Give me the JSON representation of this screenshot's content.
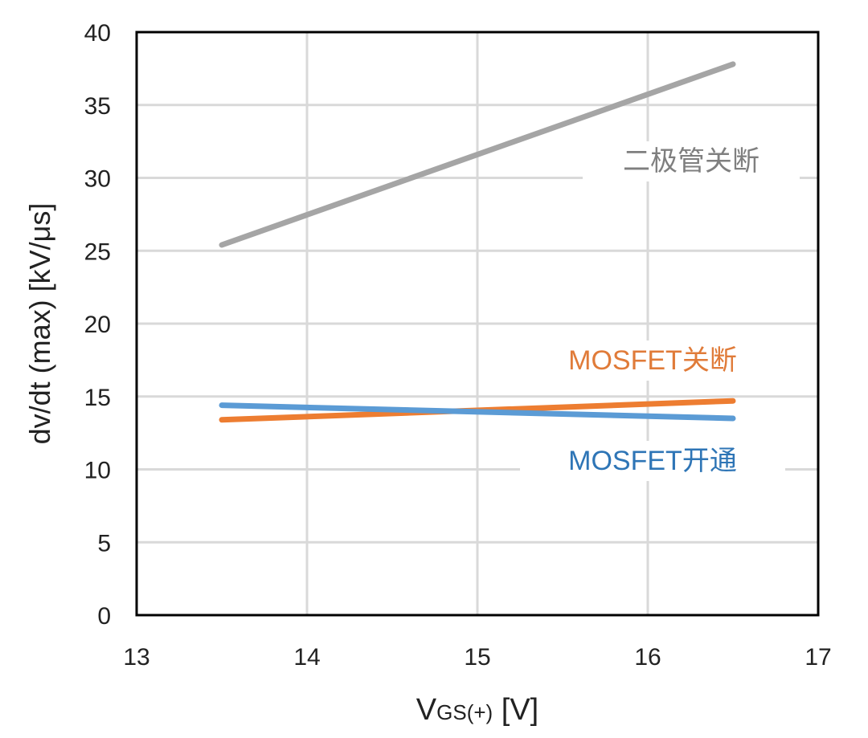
{
  "chart_data": {
    "type": "line",
    "title": "",
    "xlabel": "V",
    "xlabel_sub": "GS(+)",
    "xlabel_unit": " [V]",
    "ylabel": "dv/dt (max) [kV/μs]",
    "xlim": [
      13,
      17
    ],
    "ylim": [
      0,
      40
    ],
    "xticks": [
      13,
      14,
      15,
      16,
      17
    ],
    "yticks": [
      0,
      5,
      10,
      15,
      20,
      25,
      30,
      35,
      40
    ],
    "grid": true,
    "series": [
      {
        "name": "二极管关断",
        "color": "#a5a5a5",
        "x": [
          13.5,
          16.5
        ],
        "y": [
          25.4,
          37.8
        ]
      },
      {
        "name": "MOSFET关断",
        "color": "#ed7d31",
        "x": [
          13.5,
          16.5
        ],
        "y": [
          13.4,
          14.7
        ]
      },
      {
        "name": "MOSFET开通",
        "color": "#5b9bd5",
        "x": [
          13.5,
          16.5
        ],
        "y": [
          14.4,
          13.5
        ]
      }
    ],
    "label_colors": [
      "#7f7f7f",
      "#e07b39",
      "#2e75b6"
    ]
  }
}
